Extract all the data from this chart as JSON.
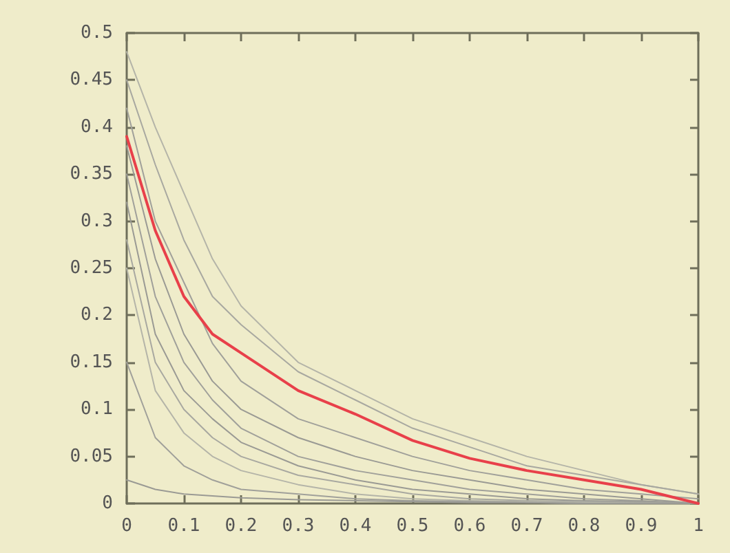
{
  "chart_data": {
    "type": "line",
    "x": [
      0,
      0.05,
      0.1,
      0.15,
      0.2,
      0.3,
      0.4,
      0.5,
      0.6,
      0.7,
      0.8,
      0.9,
      1
    ],
    "xlim": [
      0,
      1
    ],
    "xticks": [
      0,
      0.1,
      0.2,
      0.3,
      0.4,
      0.5,
      0.6,
      0.7,
      0.8,
      0.9,
      1
    ],
    "ylim": [
      0,
      0.5
    ],
    "yticks": [
      0,
      0.05,
      0.1,
      0.15,
      0.2,
      0.25,
      0.3,
      0.35,
      0.4,
      0.45,
      0.5
    ],
    "grid": false,
    "marker": "none",
    "line_style": "solid",
    "series": [
      {
        "color": "#b4b4a8",
        "values": [
          0.48,
          0.4,
          0.33,
          0.26,
          0.21,
          0.15,
          0.12,
          0.09,
          0.07,
          0.05,
          0.035,
          0.02,
          0.01
        ]
      },
      {
        "color": "#a8a8a0",
        "values": [
          0.45,
          0.36,
          0.28,
          0.22,
          0.19,
          0.14,
          0.11,
          0.08,
          0.06,
          0.04,
          0.03,
          0.02,
          0.01
        ]
      },
      {
        "color": "#a0a09a",
        "values": [
          0.42,
          0.3,
          0.235,
          0.17,
          0.13,
          0.09,
          0.07,
          0.05,
          0.035,
          0.025,
          0.015,
          0.01,
          0.005
        ]
      },
      {
        "color": "#9a9a94",
        "values": [
          0.38,
          0.26,
          0.18,
          0.13,
          0.1,
          0.07,
          0.05,
          0.035,
          0.025,
          0.015,
          0.01,
          0.005,
          0
        ]
      },
      {
        "color": "#a0a09a",
        "values": [
          0.35,
          0.22,
          0.15,
          0.11,
          0.08,
          0.05,
          0.035,
          0.025,
          0.015,
          0.01,
          0.005,
          0.003,
          0
        ]
      },
      {
        "color": "#9a9a94",
        "values": [
          0.32,
          0.18,
          0.12,
          0.09,
          0.065,
          0.04,
          0.025,
          0.015,
          0.01,
          0.005,
          0.003,
          0.002,
          0
        ]
      },
      {
        "color": "#a8a8a0",
        "values": [
          0.28,
          0.15,
          0.1,
          0.07,
          0.05,
          0.03,
          0.02,
          0.01,
          0.005,
          0.003,
          0.002,
          0.001,
          0
        ]
      },
      {
        "color": "#b4b4a8",
        "values": [
          0.25,
          0.12,
          0.075,
          0.05,
          0.035,
          0.02,
          0.01,
          0.005,
          0.003,
          0.002,
          0.001,
          0,
          0
        ]
      },
      {
        "color": "#a0a09a",
        "values": [
          0.15,
          0.07,
          0.04,
          0.025,
          0.015,
          0.01,
          0.005,
          0.003,
          0.002,
          0.001,
          0,
          0,
          0
        ]
      },
      {
        "color": "#9a9a94",
        "values": [
          0.025,
          0.015,
          0.01,
          0.008,
          0.006,
          0.004,
          0.003,
          0.002,
          0.001,
          0.001,
          0,
          0,
          0
        ]
      },
      {
        "color": "#e8404a",
        "values": [
          0.39,
          0.29,
          0.22,
          0.18,
          0.16,
          0.12,
          0.095,
          0.067,
          0.048,
          0.035,
          0.025,
          0.015,
          0
        ]
      }
    ]
  }
}
